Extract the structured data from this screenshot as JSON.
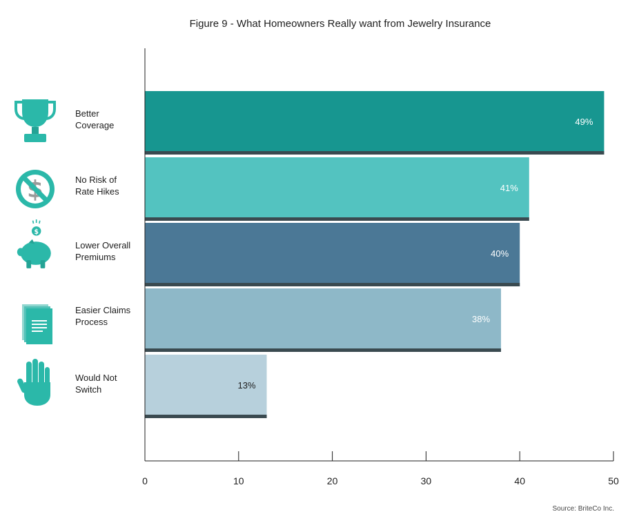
{
  "chart_data": {
    "type": "bar",
    "orientation": "horizontal",
    "title": "Figure 9 - What Homeowners Really want from Jewelry Insurance",
    "categories": [
      "Better Coverage",
      "No Risk of Rate Hikes",
      "Lower Overall Premiums",
      "Easier Claims Process",
      "Would Not Switch"
    ],
    "category_label_lines": [
      [
        "Better",
        "Coverage"
      ],
      [
        "No Risk of",
        "Rate Hikes"
      ],
      [
        "Lower Overall",
        "Premiums"
      ],
      [
        "Easier Claims",
        "Process"
      ],
      [
        "Would Not",
        "Switch"
      ]
    ],
    "values": [
      49,
      41,
      40,
      38,
      13
    ],
    "value_labels": [
      "49%",
      "41%",
      "40%",
      "38%",
      "13%"
    ],
    "bar_colors": [
      "#179690",
      "#53c3c0",
      "#4b7896",
      "#8eb8c8",
      "#b7d0dc"
    ],
    "label_colors": [
      "#ffffff",
      "#ffffff",
      "#ffffff",
      "#ffffff",
      "#1c1c1c"
    ],
    "icons": [
      "trophy-icon",
      "no-dollar-icon",
      "piggy-bank-icon",
      "documents-icon",
      "hand-icon"
    ],
    "xlim": [
      0,
      50
    ],
    "xticks": [
      0,
      10,
      20,
      30,
      40,
      50
    ],
    "xlabel": "",
    "ylabel": "",
    "grid": false,
    "source": "Source: BriteCo Inc."
  }
}
